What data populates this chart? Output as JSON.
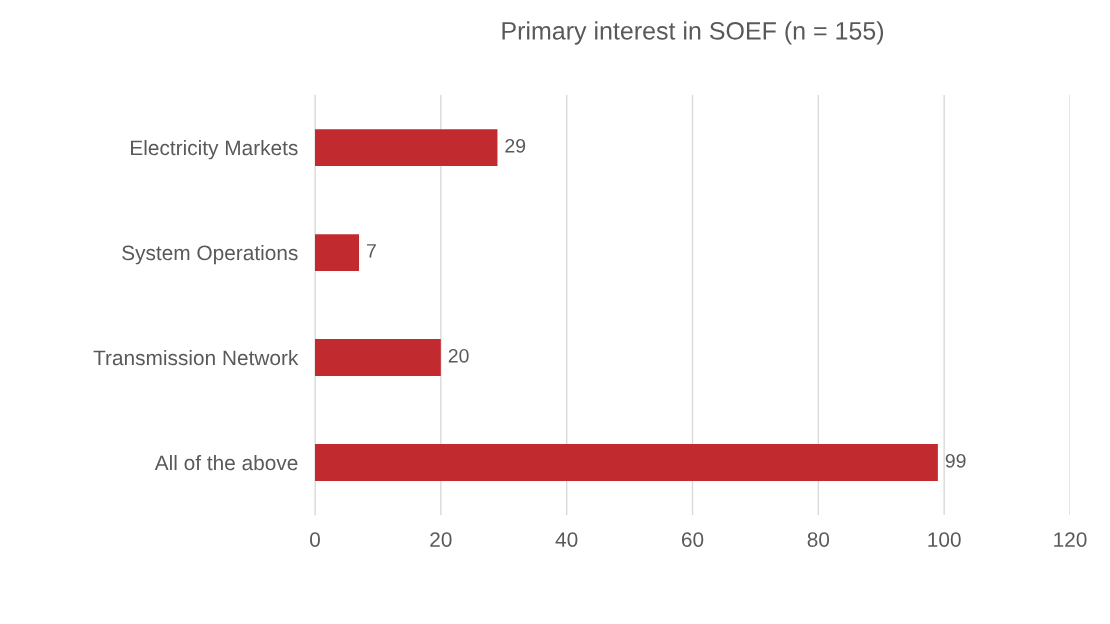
{
  "chart_data": {
    "type": "bar",
    "orientation": "horizontal",
    "title": "Primary interest in SOEF (n = 155)",
    "categories": [
      "Electricity Markets",
      "System Operations",
      "Transmission Network",
      "All of the above"
    ],
    "values": [
      29,
      7,
      20,
      99
    ],
    "color": "#c12b30",
    "xlim": [
      0,
      120
    ],
    "xticks": [
      0,
      20,
      40,
      60,
      80,
      100,
      120
    ],
    "grid": "x",
    "data_labels": true
  }
}
